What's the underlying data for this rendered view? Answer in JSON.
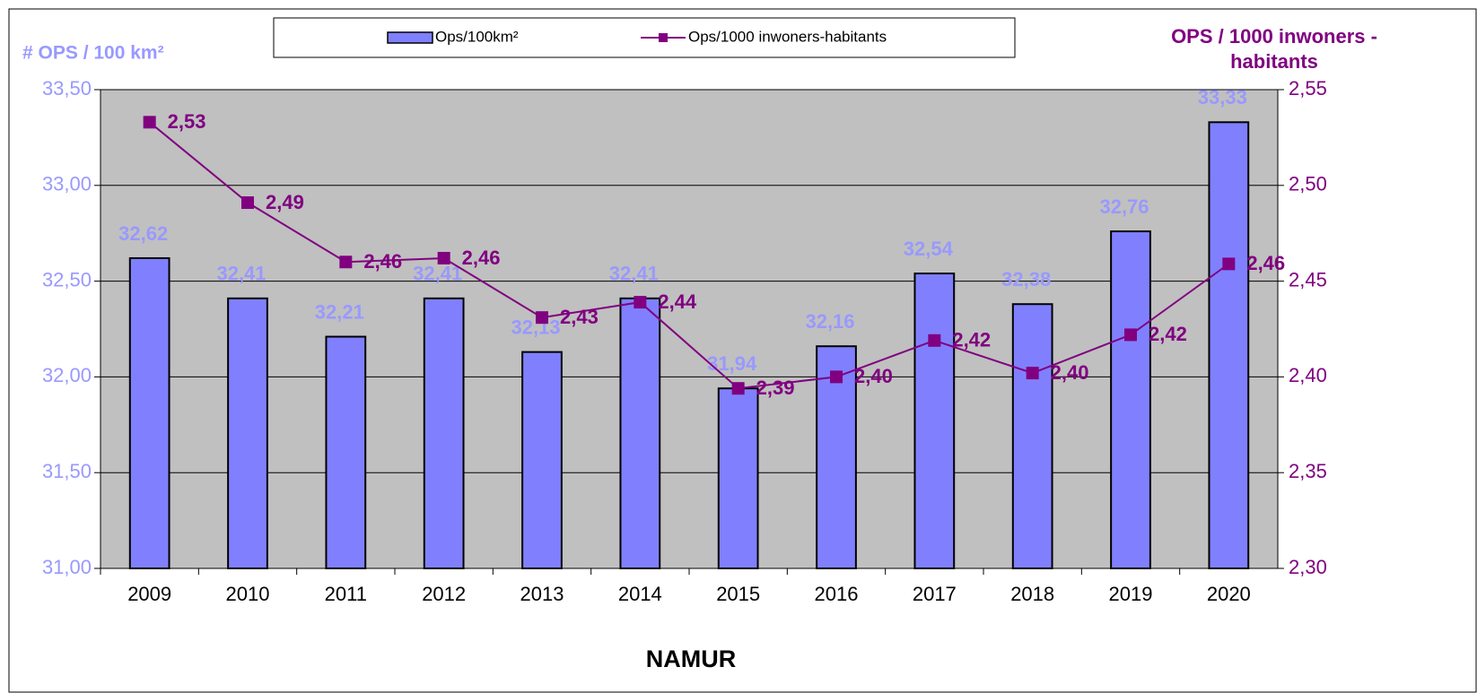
{
  "chart_data": {
    "type": "bar",
    "ylabel": "# OPS / 100 km²",
    "y2label": [
      "OPS / 1000 inwoners -",
      "habitants"
    ],
    "xlabel": "NAMUR",
    "categories": [
      "2009",
      "2010",
      "2011",
      "2012",
      "2013",
      "2014",
      "2015",
      "2016",
      "2017",
      "2018",
      "2019",
      "2020"
    ],
    "series": [
      {
        "name": "Ops/100km²",
        "type": "bar",
        "color": "#8080ff",
        "values": [
          32.62,
          32.41,
          32.21,
          32.41,
          32.13,
          32.41,
          31.94,
          32.16,
          32.54,
          32.38,
          32.76,
          33.33
        ],
        "value_labels": [
          "32,62",
          "32,41",
          "32,21",
          "32,41",
          "32,13",
          "32,41",
          "31,94",
          "32,16",
          "32,54",
          "32,38",
          "32,76",
          "33,33"
        ]
      },
      {
        "name": "Ops/1000 inwoners-habitants",
        "type": "line",
        "axis": "y2",
        "color": "#800080",
        "values": [
          2.533,
          2.491,
          2.46,
          2.462,
          2.431,
          2.439,
          2.394,
          2.4,
          2.419,
          2.402,
          2.422,
          2.459
        ],
        "value_labels": [
          "2,53",
          "2,49",
          "2,46",
          "2,46",
          "2,43",
          "2,44",
          "2,39",
          "2,40",
          "2,42",
          "2,40",
          "2,42",
          "2,46"
        ]
      }
    ],
    "ylim": [
      31,
      33.5
    ],
    "yticks": [
      {
        "value": 31,
        "label": "31,00"
      },
      {
        "value": 31.5,
        "label": "31,50"
      },
      {
        "value": 32,
        "label": "32,00"
      },
      {
        "value": 32.5,
        "label": "32,50"
      },
      {
        "value": 33,
        "label": "33,00"
      },
      {
        "value": 33.5,
        "label": "33,50"
      }
    ],
    "y2lim": [
      2.3,
      2.55
    ],
    "y2ticks": [
      {
        "value": 2.3,
        "label": "2,30"
      },
      {
        "value": 2.35,
        "label": "2,35"
      },
      {
        "value": 2.4,
        "label": "2,40"
      },
      {
        "value": 2.45,
        "label": "2,45"
      },
      {
        "value": 2.5,
        "label": "2,50"
      },
      {
        "value": 2.55,
        "label": "2,55"
      }
    ],
    "grid": true,
    "legend": "top"
  }
}
